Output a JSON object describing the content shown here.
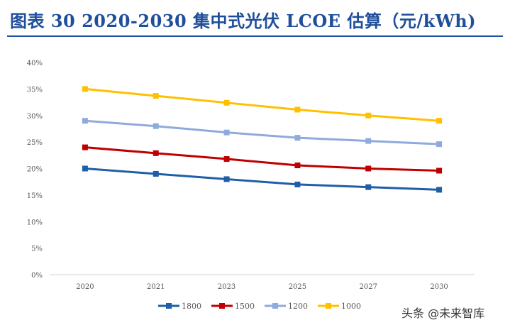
{
  "header": {
    "title": "图表 30   2020-2030 集中式光伏 LCOE 估算（元/kWh)"
  },
  "watermark": {
    "text": "头条 @未来智库"
  },
  "chart_data": {
    "type": "line",
    "title": "",
    "xlabel": "",
    "ylabel": "",
    "categories": [
      "2020",
      "2021",
      "2023",
      "2025",
      "2027",
      "2030"
    ],
    "yticks": [
      "0%",
      "5%",
      "10%",
      "15%",
      "20%",
      "25%",
      "30%",
      "35%",
      "40%"
    ],
    "ylim": [
      0,
      0.4
    ],
    "grid": false,
    "legend_position": "bottom",
    "series": [
      {
        "name": "1800",
        "color": "#1f5fa8",
        "values": [
          0.2,
          0.19,
          0.18,
          0.17,
          0.165,
          0.16
        ]
      },
      {
        "name": "1500",
        "color": "#c00000",
        "values": [
          0.24,
          0.229,
          0.218,
          0.206,
          0.2,
          0.196
        ]
      },
      {
        "name": "1200",
        "color": "#8faadc",
        "values": [
          0.29,
          0.28,
          0.268,
          0.258,
          0.252,
          0.246
        ]
      },
      {
        "name": "1000",
        "color": "#ffc000",
        "values": [
          0.35,
          0.337,
          0.324,
          0.311,
          0.3,
          0.29
        ]
      }
    ]
  }
}
